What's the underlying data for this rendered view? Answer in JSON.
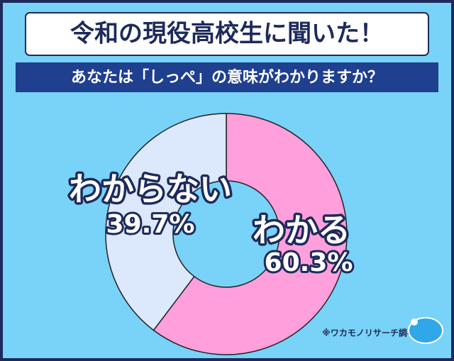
{
  "chart_data": {
    "type": "donut",
    "title": "令和の現役高校生に聞いた！",
    "subtitle": "あなたは「しっぺ」の意味がわかりますか？",
    "categories": [
      "わかる",
      "わからない"
    ],
    "values": [
      60.3,
      39.7
    ],
    "value_labels": [
      "60.3%",
      "39.7%"
    ],
    "colors": [
      "#ff9fdc",
      "#dce8fb"
    ],
    "source": "※ワカモノリサーチ調べ"
  }
}
